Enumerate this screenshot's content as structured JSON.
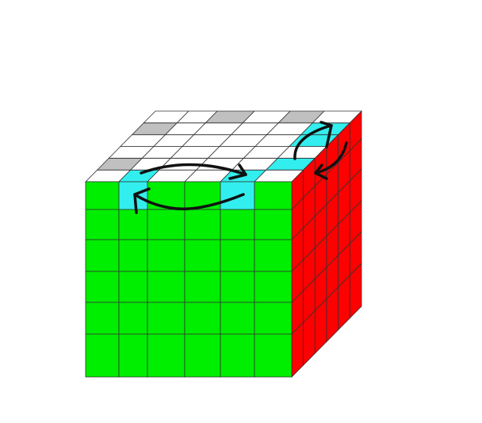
{
  "cube": {
    "size": 6,
    "colors": {
      "W": "#ffffff",
      "G": "#00ee00",
      "R": "#ff0000",
      "C": "#33eeee",
      "S": "#c0c0c0"
    },
    "front": [
      [
        "G",
        "C",
        "G",
        "G",
        "C",
        "G"
      ],
      [
        "G",
        "G",
        "G",
        "G",
        "G",
        "G"
      ],
      [
        "G",
        "G",
        "G",
        "G",
        "G",
        "G"
      ],
      [
        "G",
        "G",
        "G",
        "G",
        "G",
        "G"
      ],
      [
        "G",
        "G",
        "G",
        "G",
        "G",
        "G"
      ],
      [
        "G",
        "G",
        "G",
        "G",
        "G",
        "G"
      ]
    ],
    "top_front_to_back": [
      [
        "W",
        "C",
        "W",
        "W",
        "C",
        "W"
      ],
      [
        "S",
        "W",
        "W",
        "W",
        "W",
        "C"
      ],
      [
        "W",
        "W",
        "W",
        "W",
        "W",
        "W"
      ],
      [
        "W",
        "W",
        "W",
        "W",
        "W",
        "C"
      ],
      [
        "S",
        "W",
        "W",
        "W",
        "W",
        "C"
      ],
      [
        "W",
        "W",
        "S",
        "W",
        "S",
        "W"
      ]
    ],
    "right_face_color": "R",
    "arrows": [
      "top-face-swap-arrow",
      "front-face-swap-arrow",
      "right-top-arrow",
      "right-down-arrow"
    ]
  }
}
